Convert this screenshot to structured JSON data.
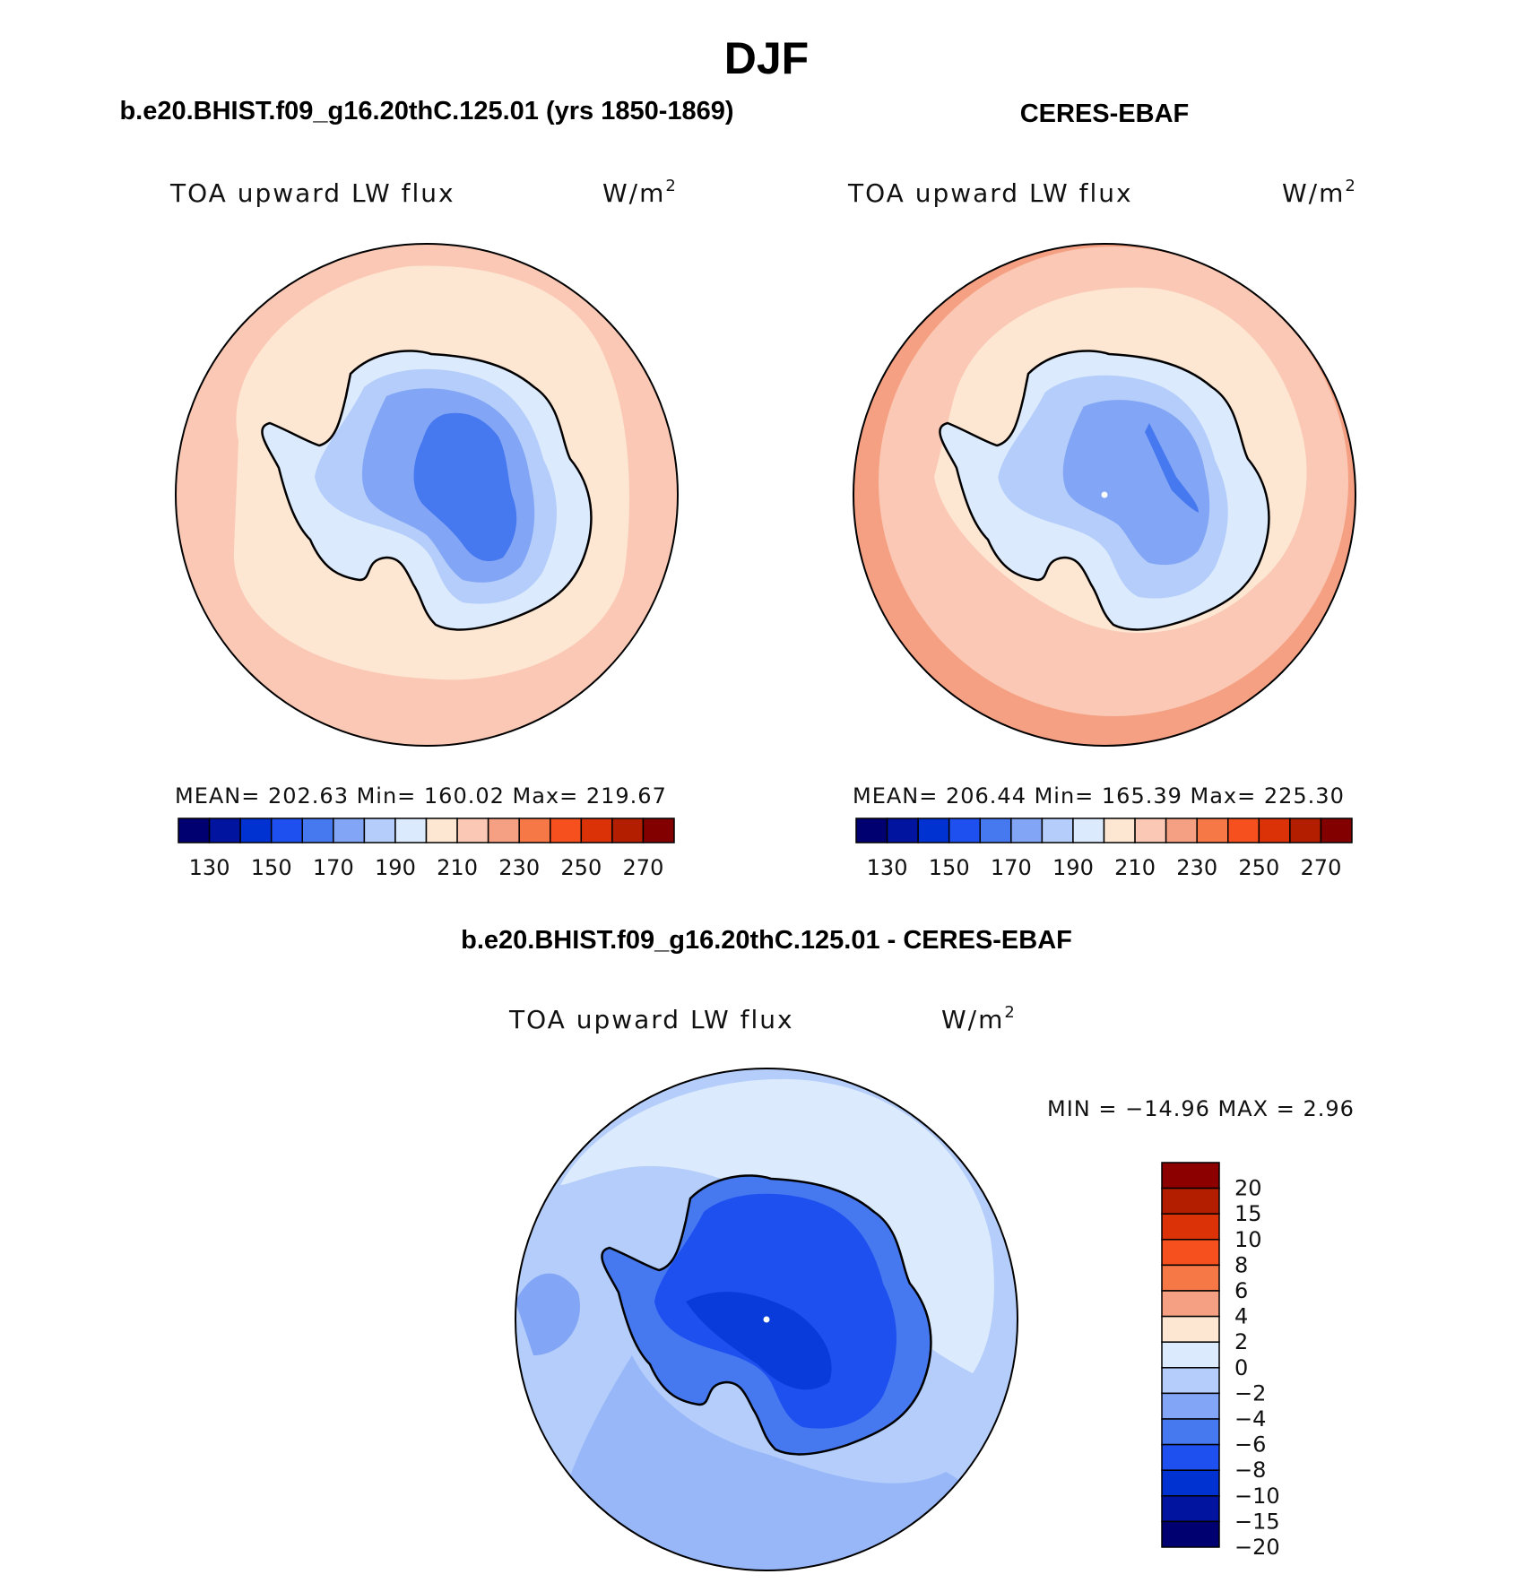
{
  "figure": {
    "season": "DJF",
    "panels": [
      {
        "id": "model",
        "heading": "b.e20.BHIST.f09_g16.20thC.125.01 (yrs 1850-1869)",
        "variable": "TOA upward LW flux",
        "units_base": "W/m",
        "units_exp": "2",
        "stats": "MEAN= 202.63   Min= 160.02   Max= 219.67"
      },
      {
        "id": "obs",
        "heading": "CERES-EBAF",
        "variable": "TOA upward LW flux",
        "units_base": "W/m",
        "units_exp": "2",
        "stats": "MEAN= 206.44   Min= 165.39   Max= 225.30"
      },
      {
        "id": "diff",
        "heading": "b.e20.BHIST.f09_g16.20thC.125.01 - CERES-EBAF",
        "variable": "TOA upward LW flux",
        "units_base": "W/m",
        "units_exp": "2",
        "stats": "MIN = −14.96 MAX =    2.96"
      }
    ],
    "abs_colorbar": {
      "colors": [
        "#000070",
        "#0014a0",
        "#0032d2",
        "#1e50f0",
        "#4678f0",
        "#82a5f5",
        "#b4cdfa",
        "#dceafd",
        "#fde6d2",
        "#fac8b4",
        "#f5a082",
        "#f57846",
        "#f5501e",
        "#dc3208",
        "#b41e00",
        "#820000"
      ],
      "tick_labels": [
        "130",
        "150",
        "170",
        "190",
        "210",
        "230",
        "250",
        "270"
      ]
    },
    "diff_colorbar": {
      "colors_top_to_bottom": [
        "#8c0000",
        "#b41e00",
        "#dc3208",
        "#f5501e",
        "#f57846",
        "#f5a082",
        "#fde6d2",
        "#dceafd",
        "#b4cdfa",
        "#82a5f5",
        "#4678f0",
        "#1e50f0",
        "#0032d2",
        "#0014a0",
        "#000070"
      ],
      "tick_labels": [
        "20",
        "15",
        "10",
        "8",
        "6",
        "4",
        "2",
        "0",
        "−2",
        "−4",
        "−6",
        "−8",
        "−10",
        "−15",
        "−20"
      ]
    },
    "fill_colors": {
      "ocean_model": "#fde6d2",
      "ocean_outer": "#fac8b4",
      "ocean_obs_edge": "#f5a082",
      "land_light": "#dceafd",
      "land_mid1": "#b4cdfa",
      "land_mid2": "#82a5f5",
      "land_core": "#4678f0",
      "diff_ocean": "#b4cdfa",
      "diff_ocean_light": "#dceafd",
      "diff_land": "#4678f0",
      "diff_core": "#1e50f0"
    }
  }
}
